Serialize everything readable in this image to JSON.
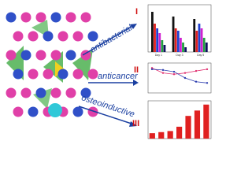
{
  "labels": [
    "antibacterial",
    "anticancer",
    "osteoinductive"
  ],
  "numerals": [
    "I",
    "II",
    "III"
  ],
  "panels": [
    {
      "type": "bar",
      "categories": [
        "Day 1",
        "Day 3",
        "Day 5"
      ],
      "ylim": [
        0,
        10
      ],
      "series": [
        {
          "color": "#111111",
          "values": [
            8.5,
            7.5,
            7
          ]
        },
        {
          "color": "#e02020",
          "values": [
            6,
            5,
            4.5
          ]
        },
        {
          "color": "#2040d0",
          "values": [
            5,
            4.5,
            6
          ]
        },
        {
          "color": "#d020d0",
          "values": [
            4,
            3,
            5
          ]
        },
        {
          "color": "#20a040",
          "values": [
            2.5,
            2,
            3
          ]
        },
        {
          "color": "#101060",
          "values": [
            1.5,
            1,
            2
          ]
        }
      ]
    },
    {
      "type": "line",
      "ylim": [
        0,
        120
      ],
      "series": [
        {
          "color": "#e03070",
          "values": [
            100,
            80,
            75,
            80,
            88,
            95
          ]
        },
        {
          "color": "#3040b0",
          "values": [
            95,
            92,
            85,
            60,
            45,
            40
          ]
        }
      ]
    },
    {
      "type": "bar",
      "ylim": [
        0,
        7
      ],
      "series": [
        {
          "color": "#e02020",
          "values": [
            1,
            1.2,
            1.4,
            2.2,
            4.2,
            5.2,
            6.3
          ]
        }
      ]
    }
  ]
}
